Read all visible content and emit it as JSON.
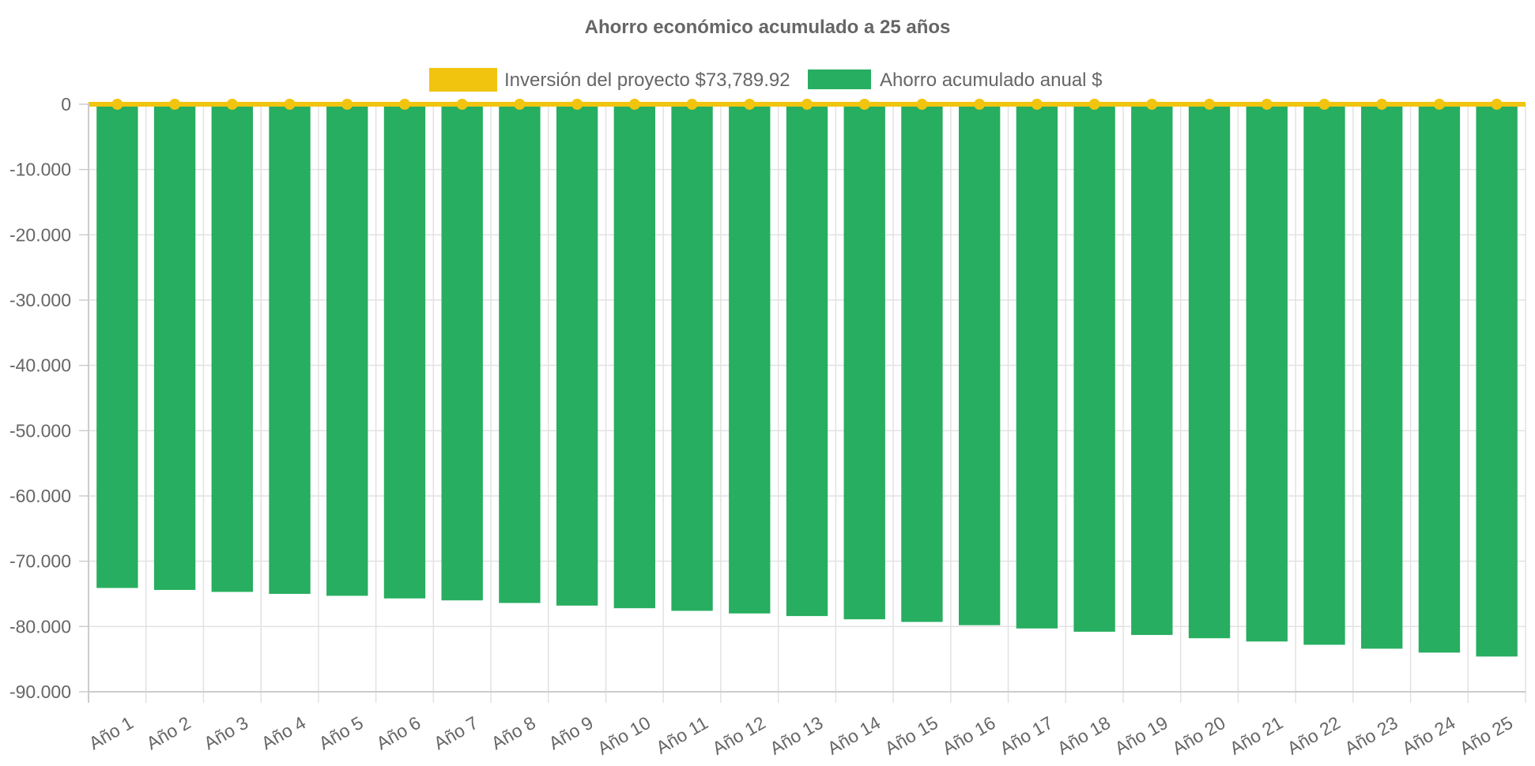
{
  "chart_data": {
    "type": "bar",
    "title": "Ahorro económico acumulado a 25 años",
    "categories": [
      "Año 1",
      "Año 2",
      "Año 3",
      "Año 4",
      "Año 5",
      "Año 6",
      "Año 7",
      "Año 8",
      "Año 9",
      "Año 10",
      "Año 11",
      "Año 12",
      "Año 13",
      "Año 14",
      "Año 15",
      "Año 16",
      "Año 17",
      "Año 18",
      "Año 19",
      "Año 20",
      "Año 21",
      "Año 22",
      "Año 23",
      "Año 24",
      "Año 25"
    ],
    "series": [
      {
        "name": "Inversión del proyecto $73,789.92",
        "kind": "line",
        "color": "#f1c40f",
        "values": [
          0,
          0,
          0,
          0,
          0,
          0,
          0,
          0,
          0,
          0,
          0,
          0,
          0,
          0,
          0,
          0,
          0,
          0,
          0,
          0,
          0,
          0,
          0,
          0,
          0
        ]
      },
      {
        "name": "Ahorro acumulado anual $",
        "kind": "bar",
        "color": "#27ae60",
        "values": [
          -74100,
          -74400,
          -74700,
          -75000,
          -75300,
          -75700,
          -76000,
          -76400,
          -76800,
          -77200,
          -77600,
          -78000,
          -78400,
          -78900,
          -79300,
          -79800,
          -80300,
          -80800,
          -81300,
          -81800,
          -82300,
          -82800,
          -83400,
          -84000,
          -84600
        ]
      }
    ],
    "ylim": [
      -90000,
      0
    ],
    "y_ticks": [
      0,
      -10000,
      -20000,
      -30000,
      -40000,
      -50000,
      -60000,
      -70000,
      -80000,
      -90000
    ],
    "y_tick_labels": [
      "0",
      "-10.000",
      "-20.000",
      "-30.000",
      "-40.000",
      "-50.000",
      "-60.000",
      "-70.000",
      "-80.000",
      "-90.000"
    ],
    "xlabel": "",
    "ylabel": "",
    "grid": true,
    "legend": "top-center"
  }
}
